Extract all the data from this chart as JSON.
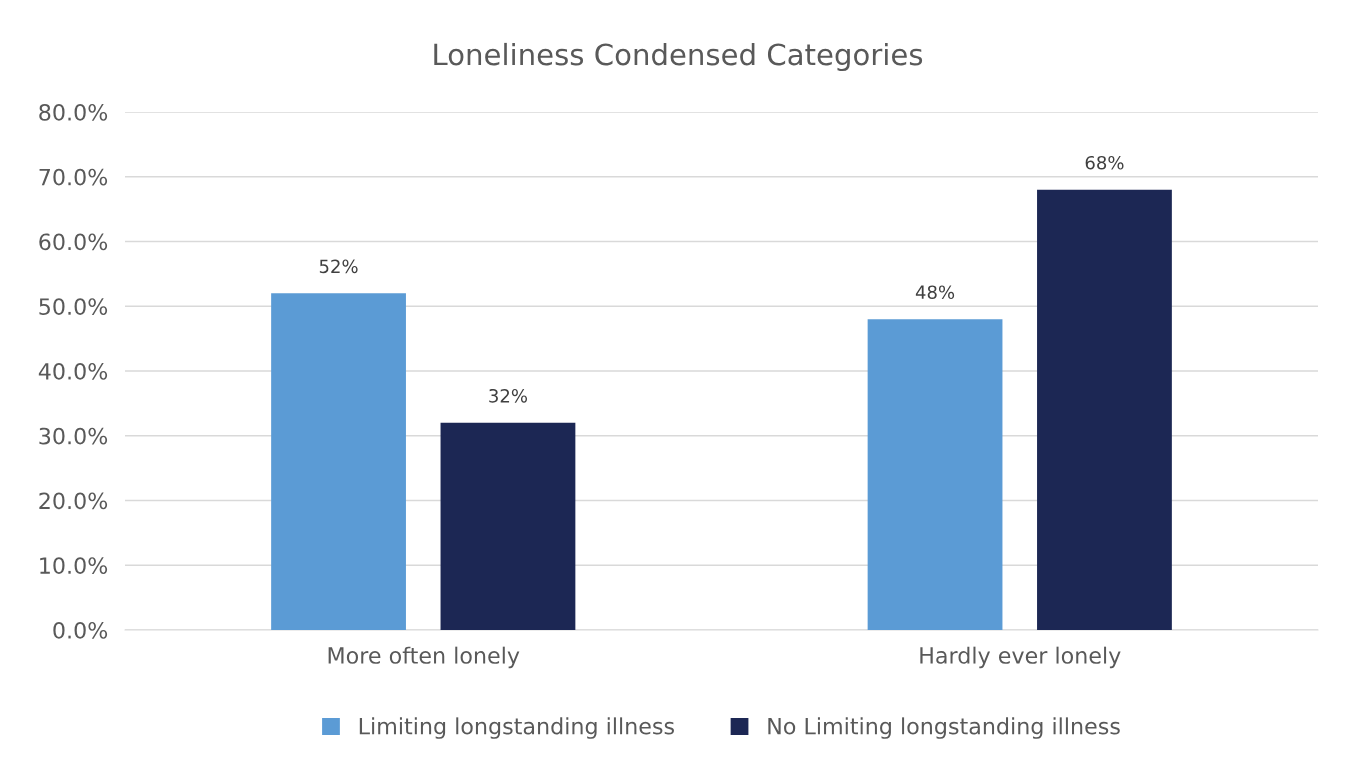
{
  "chart_data": {
    "type": "bar",
    "title": "Loneliness Condensed Categories",
    "categories": [
      "More often lonely",
      "Hardly ever lonely"
    ],
    "series": [
      {
        "name": "Limiting longstanding illness",
        "color": "#5b9bd5",
        "values": [
          52,
          48
        ],
        "value_labels": [
          "52%",
          "48%"
        ]
      },
      {
        "name": "No Limiting longstanding illness",
        "color": "#1c2754",
        "values": [
          32,
          68
        ],
        "value_labels": [
          "32%",
          "68%"
        ]
      }
    ],
    "ylim": [
      0,
      80
    ],
    "yticks": [
      {
        "value": 0,
        "label": "0.0%"
      },
      {
        "value": 10,
        "label": "10.0%"
      },
      {
        "value": 20,
        "label": "20.0%"
      },
      {
        "value": 30,
        "label": "30.0%"
      },
      {
        "value": 40,
        "label": "40.0%"
      },
      {
        "value": 50,
        "label": "50.0%"
      },
      {
        "value": 60,
        "label": "60.0%"
      },
      {
        "value": 70,
        "label": "70.0%"
      },
      {
        "value": 80,
        "label": "80.0%"
      }
    ],
    "grid": "y",
    "legend": "bottom"
  }
}
